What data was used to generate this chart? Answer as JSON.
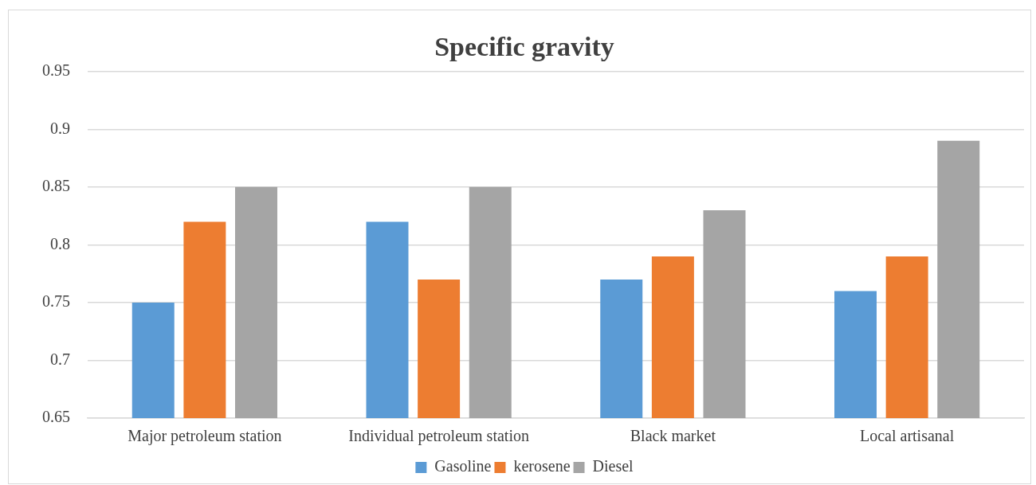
{
  "chart_data": {
    "type": "bar",
    "title": "Specific gravity",
    "categories": [
      "Major petroleum station",
      "Individual petroleum station",
      "Black market",
      "Local artisanal"
    ],
    "series": [
      {
        "name": "Gasoline",
        "color": "#5b9bd5",
        "values": [
          0.75,
          0.82,
          0.77,
          0.76
        ]
      },
      {
        "name": "kerosene",
        "color": "#ed7d31",
        "values": [
          0.82,
          0.77,
          0.79,
          0.79
        ]
      },
      {
        "name": "Diesel",
        "color": "#a5a5a5",
        "values": [
          0.85,
          0.85,
          0.83,
          0.89
        ]
      }
    ],
    "ylim": [
      0.65,
      0.95
    ],
    "yticks": [
      0.65,
      0.7,
      0.75,
      0.8,
      0.85,
      0.9,
      0.95
    ],
    "grid": "y",
    "legend": "bottom"
  }
}
